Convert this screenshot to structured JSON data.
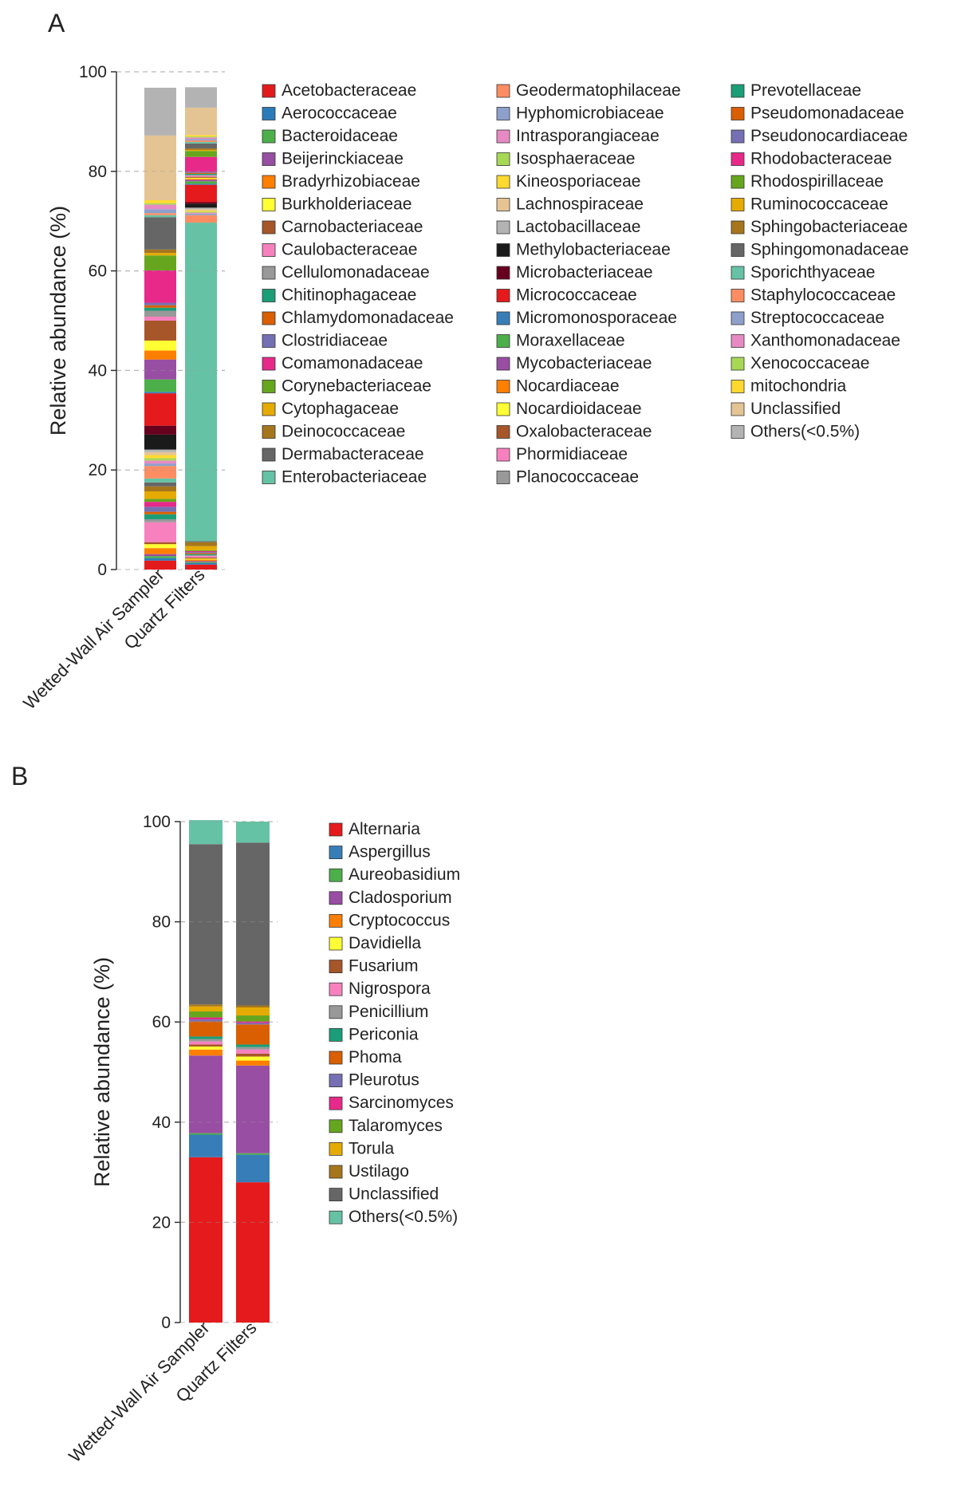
{
  "panels": [
    {
      "letter": "A",
      "chart_data": {
        "type": "bar",
        "stacked": true,
        "ylabel": "Relative abundance (%)",
        "ylim": [
          0,
          100
        ],
        "yticks": [
          0,
          20,
          40,
          60,
          80,
          100
        ],
        "grid": "dashed-horizontal",
        "categories": [
          "Wetted-Wall Air Sampler",
          "Quartz Filters"
        ],
        "legend_columns": 3,
        "series": [
          {
            "name": "Acetobacteraceae",
            "color": "#e31a1c",
            "values": [
              1.8,
              1.0
            ]
          },
          {
            "name": "Aerococcaceae",
            "color": "#2b7bba",
            "values": [
              0.5,
              0.3
            ]
          },
          {
            "name": "Bacteroidaceae",
            "color": "#4daf4a",
            "values": [
              0.4,
              0.2
            ]
          },
          {
            "name": "Beijerinckiaceae",
            "color": "#984ea3",
            "values": [
              0.4,
              0.2
            ]
          },
          {
            "name": "Bradyrhizobiaceae",
            "color": "#ff7f00",
            "values": [
              1.2,
              0.3
            ]
          },
          {
            "name": "Burkholderiaceae",
            "color": "#ffff33",
            "values": [
              0.8,
              0.2
            ]
          },
          {
            "name": "Carnobacteriaceae",
            "color": "#a65628",
            "values": [
              0.4,
              0.2
            ]
          },
          {
            "name": "Caulobacteraceae",
            "color": "#f781bf",
            "values": [
              4.0,
              0.3
            ]
          },
          {
            "name": "Cellulomonadaceae",
            "color": "#999999",
            "values": [
              0.6,
              0.2
            ]
          },
          {
            "name": "Chitinophagaceae",
            "color": "#1b9e77",
            "values": [
              1.0,
              0.2
            ]
          },
          {
            "name": "Chlamydomonadaceae",
            "color": "#d95f02",
            "values": [
              0.5,
              0.2
            ]
          },
          {
            "name": "Clostridiaceae",
            "color": "#7570b3",
            "values": [
              1.0,
              0.2
            ]
          },
          {
            "name": "Comamonadaceae",
            "color": "#e7298a",
            "values": [
              1.0,
              0.2
            ]
          },
          {
            "name": "Corynebacteriaceae",
            "color": "#66a61e",
            "values": [
              0.6,
              0.2
            ]
          },
          {
            "name": "Cytophagaceae",
            "color": "#e6ab02",
            "values": [
              1.5,
              0.8
            ]
          },
          {
            "name": "Deinococcaceae",
            "color": "#a6761d",
            "values": [
              1.0,
              0.8
            ]
          },
          {
            "name": "Dermabacteraceae",
            "color": "#666666",
            "values": [
              0.8,
              0.2
            ]
          },
          {
            "name": "Enterobacteriaceae",
            "color": "#66c2a5",
            "values": [
              0.8,
              64.0
            ]
          },
          {
            "name": "Geodermatophilaceae",
            "color": "#fc8d62",
            "values": [
              2.5,
              1.5
            ]
          },
          {
            "name": "Hyphomicrobiaceae",
            "color": "#8da0cb",
            "values": [
              0.5,
              0.3
            ]
          },
          {
            "name": "Intrasporangiaceae",
            "color": "#e78ac3",
            "values": [
              0.6,
              0.2
            ]
          },
          {
            "name": "Isosphaeraceae",
            "color": "#a6d854",
            "values": [
              0.5,
              0.2
            ]
          },
          {
            "name": "Kineosporiaceae",
            "color": "#ffd92f",
            "values": [
              0.6,
              0.2
            ]
          },
          {
            "name": "Lachnospiraceae",
            "color": "#e5c494",
            "values": [
              0.6,
              0.3
            ]
          },
          {
            "name": "Lactobacillaceae",
            "color": "#b3b3b3",
            "values": [
              0.5,
              0.3
            ]
          },
          {
            "name": "Methylobacteriaceae",
            "color": "#1a1a1a",
            "values": [
              3.0,
              0.8
            ]
          },
          {
            "name": "Microbacteriaceae",
            "color": "#67001f",
            "values": [
              1.8,
              0.3
            ]
          },
          {
            "name": "Micrococcaceae",
            "color": "#e41a1c",
            "values": [
              6.5,
              3.5
            ]
          },
          {
            "name": "Micromonosporaceae",
            "color": "#377eb8",
            "values": [
              0.3,
              0.2
            ]
          },
          {
            "name": "Moraxellaceae",
            "color": "#4daf4a",
            "values": [
              2.5,
              0.5
            ]
          },
          {
            "name": "Mycobacteriaceae",
            "color": "#984ea3",
            "values": [
              4.0,
              0.3
            ]
          },
          {
            "name": "Nocardiaceae",
            "color": "#ff7f00",
            "values": [
              1.8,
              0.2
            ]
          },
          {
            "name": "Nocardioidaceae",
            "color": "#ffff33",
            "values": [
              2.0,
              0.2
            ]
          },
          {
            "name": "Oxalobacteraceae",
            "color": "#a65628",
            "values": [
              4.0,
              0.2
            ]
          },
          {
            "name": "Phormidiaceae",
            "color": "#f781bf",
            "values": [
              0.8,
              0.2
            ]
          },
          {
            "name": "Planococcaceae",
            "color": "#999999",
            "values": [
              1.2,
              0.2
            ]
          },
          {
            "name": "Prevotellaceae",
            "color": "#1b9e77",
            "values": [
              0.6,
              0.2
            ]
          },
          {
            "name": "Pseudomonadaceae",
            "color": "#d95f02",
            "values": [
              0.5,
              0.2
            ]
          },
          {
            "name": "Pseudonocardiaceae",
            "color": "#7570b3",
            "values": [
              0.5,
              0.2
            ]
          },
          {
            "name": "Rhodobacteraceae",
            "color": "#e7298a",
            "values": [
              6.5,
              3.0
            ]
          },
          {
            "name": "Rhodospirillaceae",
            "color": "#66a61e",
            "values": [
              3.0,
              1.2
            ]
          },
          {
            "name": "Ruminococcaceae",
            "color": "#e6ab02",
            "values": [
              0.5,
              0.2
            ]
          },
          {
            "name": "Sphingobacteriaceae",
            "color": "#a6761d",
            "values": [
              0.7,
              0.3
            ]
          },
          {
            "name": "Sphingomonadaceae",
            "color": "#666666",
            "values": [
              6.5,
              1.0
            ]
          },
          {
            "name": "Sporichthyaceae",
            "color": "#66c2a5",
            "values": [
              0.4,
              0.3
            ]
          },
          {
            "name": "Staphylococcaceae",
            "color": "#fc8d62",
            "values": [
              0.4,
              0.3
            ]
          },
          {
            "name": "Streptococcaceae",
            "color": "#8da0cb",
            "values": [
              0.8,
              0.3
            ]
          },
          {
            "name": "Xanthomonadaceae",
            "color": "#e78ac3",
            "values": [
              0.9,
              0.3
            ]
          },
          {
            "name": "Xenococcaceae",
            "color": "#a6d854",
            "values": [
              0.3,
              0.2
            ]
          },
          {
            "name": "mitochondria",
            "color": "#ffd92f",
            "values": [
              0.6,
              0.3
            ]
          },
          {
            "name": "Unclassified",
            "color": "#e5c494",
            "values": [
              13.0,
              5.5
            ]
          },
          {
            "name": "Others(<0.5%)",
            "color": "#b3b3b3",
            "values": [
              9.6,
              4.1
            ]
          }
        ]
      }
    },
    {
      "letter": "B",
      "chart_data": {
        "type": "bar",
        "stacked": true,
        "ylabel": "Relative abundance (%)",
        "ylim": [
          0,
          100
        ],
        "yticks": [
          0,
          20,
          40,
          60,
          80,
          100
        ],
        "grid": "dashed-horizontal",
        "categories": [
          "Wetted-Wall Air Sampler",
          "Quartz Filters"
        ],
        "legend_columns": 1,
        "series": [
          {
            "name": "Alternaria",
            "color": "#e41a1c",
            "values": [
              33.0,
              28.0
            ]
          },
          {
            "name": "Aspergillus",
            "color": "#377eb8",
            "values": [
              4.5,
              5.5
            ]
          },
          {
            "name": "Aureobasidium",
            "color": "#4daf4a",
            "values": [
              0.3,
              0.3
            ]
          },
          {
            "name": "Cladosporium",
            "color": "#984ea3",
            "values": [
              15.5,
              17.5
            ]
          },
          {
            "name": "Cryptococcus",
            "color": "#ff7f00",
            "values": [
              1.2,
              1.0
            ]
          },
          {
            "name": "Davidiella",
            "color": "#ffff33",
            "values": [
              0.6,
              0.8
            ]
          },
          {
            "name": "Fusarium",
            "color": "#a65628",
            "values": [
              0.4,
              0.6
            ]
          },
          {
            "name": "Nigrospora",
            "color": "#f781bf",
            "values": [
              0.6,
              0.8
            ]
          },
          {
            "name": "Penicillium",
            "color": "#999999",
            "values": [
              0.5,
              0.5
            ]
          },
          {
            "name": "Periconia",
            "color": "#1b9e77",
            "values": [
              0.5,
              0.5
            ]
          },
          {
            "name": "Phoma",
            "color": "#d95f02",
            "values": [
              3.0,
              4.0
            ]
          },
          {
            "name": "Pleurotus",
            "color": "#7570b3",
            "values": [
              0.4,
              0.3
            ]
          },
          {
            "name": "Sarcinomyces",
            "color": "#e7298a",
            "values": [
              0.4,
              0.3
            ]
          },
          {
            "name": "Talaromyces",
            "color": "#66a61e",
            "values": [
              1.2,
              1.2
            ]
          },
          {
            "name": "Torula",
            "color": "#e6ab02",
            "values": [
              1.0,
              1.6
            ]
          },
          {
            "name": "Ustilago",
            "color": "#a6761d",
            "values": [
              0.4,
              0.4
            ]
          },
          {
            "name": "Unclassified",
            "color": "#666666",
            "values": [
              32.0,
              32.5
            ]
          },
          {
            "name": "Others(<0.5%)",
            "color": "#66c2a5",
            "values": [
              4.8,
              4.2
            ]
          }
        ]
      }
    }
  ]
}
